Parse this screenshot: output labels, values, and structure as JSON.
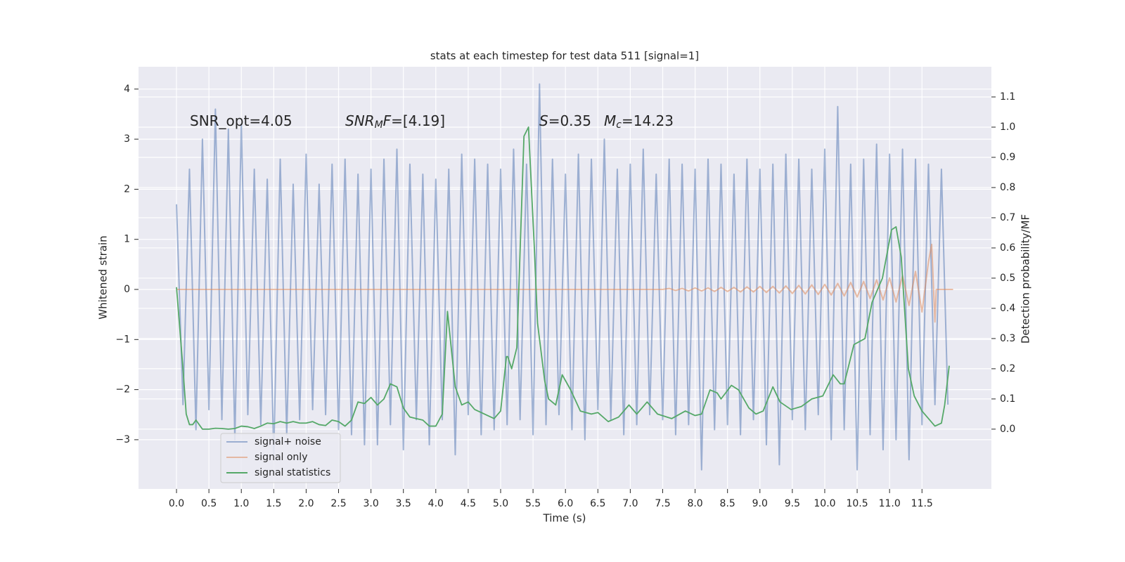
{
  "chart_data": {
    "type": "line",
    "title": "stats at each timestep for test data 511 [signal=1]",
    "xlabel": "Time (s)",
    "ylabel": "Whitened strain",
    "y2label": "Detection probability/MF",
    "annotations": [
      {
        "parts": [
          {
            "text": "SNR_opt=4.05"
          }
        ]
      },
      {
        "parts": [
          {
            "text": "SNR",
            "italic": true
          },
          {
            "text": "M",
            "italic": true,
            "sub": true
          },
          {
            "text": "F",
            "italic": true
          },
          {
            "text": "=[4.19]"
          }
        ]
      },
      {
        "parts": [
          {
            "text": "S",
            "italic": true
          },
          {
            "text": "=0.35"
          }
        ]
      },
      {
        "parts": [
          {
            "text": "M",
            "italic": true
          },
          {
            "text": "c",
            "italic": true,
            "sub": true
          },
          {
            "text": "=14.23"
          }
        ]
      }
    ],
    "xlim": [
      -0.586,
      12.571
    ],
    "ylim": [
      -3.983,
      4.446
    ],
    "y2lim": [
      -0.198,
      1.2
    ],
    "xticks": [
      {
        "value": 0,
        "label": "0.0"
      },
      0.5,
      {
        "value": 1,
        "label": "1.0"
      },
      1.5,
      {
        "value": 2,
        "label": "2.0"
      },
      2.5,
      {
        "value": 3,
        "label": "3.0"
      },
      3.5,
      {
        "value": 4,
        "label": "4.0"
      },
      4.5,
      {
        "value": 5,
        "label": "5.0"
      },
      5.5,
      {
        "value": 6,
        "label": "6.0"
      },
      6.5,
      {
        "value": 7,
        "label": "7.0"
      },
      7.5,
      {
        "value": 8,
        "label": "8.0"
      },
      8.5,
      {
        "value": 9,
        "label": "9.0"
      },
      9.5,
      {
        "value": 10,
        "label": "10.0"
      },
      10.5,
      {
        "value": 11,
        "label": "11.0"
      },
      11.5
    ],
    "yticks": [
      {
        "value": -3,
        "label": "−3"
      },
      {
        "value": -2,
        "label": "−2"
      },
      {
        "value": -1,
        "label": "−1"
      },
      0,
      1,
      2,
      3,
      4
    ],
    "y2ticks": [
      {
        "value": 0,
        "label": "0.0"
      },
      0.1,
      0.2,
      0.3,
      0.4,
      0.5,
      0.6,
      0.7,
      0.8,
      0.9,
      {
        "value": 1,
        "label": "1.0"
      },
      1.1
    ],
    "grid": true,
    "legend_loc": "lower left",
    "series": [
      {
        "name": "signal+ noise",
        "color": "#4c72b0",
        "opacity": 0.5,
        "x": [
          0,
          0.1,
          0.2,
          0.3,
          0.4,
          0.5,
          0.6,
          0.7,
          0.8,
          0.9,
          1,
          1.1,
          1.2,
          1.3,
          1.4,
          1.5,
          1.6,
          1.7,
          1.8,
          1.9,
          2,
          2.1,
          2.2,
          2.3,
          2.4,
          2.5,
          2.6,
          2.7,
          2.8,
          2.9,
          3,
          3.1,
          3.2,
          3.3,
          3.4,
          3.5,
          3.6,
          3.7,
          3.8,
          3.9,
          4,
          4.1,
          4.2,
          4.3,
          4.4,
          4.5,
          4.6,
          4.7,
          4.8,
          4.9,
          5,
          5.1,
          5.2,
          5.3,
          5.4,
          5.5,
          5.6,
          5.7,
          5.8,
          5.9,
          6,
          6.1,
          6.2,
          6.3,
          6.4,
          6.5,
          6.6,
          6.7,
          6.8,
          6.9,
          7,
          7.1,
          7.2,
          7.3,
          7.4,
          7.5,
          7.6,
          7.7,
          7.8,
          7.9,
          8,
          8.1,
          8.2,
          8.3,
          8.4,
          8.5,
          8.6,
          8.7,
          8.8,
          8.9,
          9,
          9.1,
          9.2,
          9.3,
          9.4,
          9.5,
          9.6,
          9.7,
          9.8,
          9.9,
          10,
          10.1,
          10.2,
          10.3,
          10.4,
          10.5,
          10.6,
          10.7,
          10.8,
          10.9,
          11,
          11.1,
          11.2,
          11.3,
          11.4,
          11.5,
          11.6,
          11.7,
          11.8,
          11.9
        ],
        "values": [
          1.7,
          -2.3,
          2.4,
          -2.8,
          3.0,
          -2.4,
          3.6,
          -2.6,
          3.2,
          -3.0,
          3.3,
          -2.5,
          2.4,
          -2.7,
          2.2,
          -3.3,
          2.6,
          -2.9,
          2.1,
          -2.6,
          2.7,
          -2.4,
          2.1,
          -2.5,
          2.5,
          -2.8,
          2.6,
          -2.9,
          2.3,
          -3.1,
          2.4,
          -3.1,
          2.6,
          -2.7,
          2.8,
          -3.2,
          2.5,
          -2.6,
          2.3,
          -3.1,
          2.2,
          -2.6,
          2.4,
          -3.3,
          2.7,
          -2.5,
          2.6,
          -2.9,
          2.5,
          -2.8,
          2.4,
          -2.7,
          2.8,
          -2.6,
          2.5,
          -2.9,
          4.1,
          -2.7,
          2.6,
          -2.5,
          2.3,
          -2.8,
          2.7,
          -3.0,
          2.6,
          -2.4,
          3.0,
          -2.6,
          2.4,
          -2.9,
          2.5,
          -2.7,
          2.8,
          -2.5,
          2.3,
          -2.6,
          2.6,
          -2.9,
          2.5,
          -2.7,
          2.4,
          -3.6,
          2.6,
          -2.8,
          2.5,
          -2.7,
          2.3,
          -2.9,
          2.6,
          -2.6,
          2.4,
          -3.1,
          2.5,
          -3.5,
          2.7,
          -2.6,
          2.6,
          -2.8,
          2.4,
          -2.5,
          2.8,
          -3.0,
          3.65,
          -2.8,
          2.5,
          -3.6,
          2.6,
          -2.9,
          2.9,
          -3.2,
          2.7,
          -3.0,
          2.8,
          -3.4,
          2.6,
          -2.7,
          2.5,
          -2.3,
          2.4,
          -2.3
        ]
      },
      {
        "name": "signal only",
        "color": "#dd8452",
        "opacity": 0.5,
        "x": [
          0,
          7.5,
          7.6,
          7.7,
          7.8,
          7.9,
          8,
          8.1,
          8.2,
          8.3,
          8.4,
          8.5,
          8.6,
          8.7,
          8.8,
          8.9,
          9,
          9.1,
          9.2,
          9.3,
          9.4,
          9.5,
          9.6,
          9.7,
          9.8,
          9.9,
          10,
          10.1,
          10.2,
          10.3,
          10.4,
          10.5,
          10.6,
          10.7,
          10.8,
          10.9,
          11,
          11.1,
          11.2,
          11.3,
          11.4,
          11.5,
          11.6,
          11.65,
          11.7,
          11.72,
          11.98
        ],
        "values": [
          0,
          0,
          0.02,
          -0.02,
          0.02,
          -0.03,
          0.03,
          -0.03,
          0.03,
          -0.04,
          0.04,
          -0.04,
          0.04,
          -0.05,
          0.05,
          -0.05,
          0.06,
          -0.06,
          0.06,
          -0.07,
          0.07,
          -0.08,
          0.08,
          -0.09,
          0.09,
          -0.1,
          0.1,
          -0.11,
          0.12,
          -0.13,
          0.14,
          -0.15,
          0.16,
          -0.18,
          0.19,
          -0.21,
          0.23,
          -0.25,
          0.28,
          -0.32,
          0.36,
          -0.45,
          0.55,
          0.9,
          -0.65,
          0,
          0
        ]
      },
      {
        "name": "signal statistics",
        "color": "#55a868",
        "opacity": 1,
        "axis": "y2",
        "x": [
          0,
          0.1,
          0.15,
          0.2,
          0.25,
          0.3,
          0.4,
          0.5,
          0.6,
          0.7,
          0.8,
          0.9,
          1,
          1.1,
          1.2,
          1.3,
          1.4,
          1.5,
          1.6,
          1.7,
          1.8,
          1.9,
          2,
          2.1,
          2.2,
          2.3,
          2.4,
          2.5,
          2.6,
          2.7,
          2.8,
          2.9,
          3,
          3.1,
          3.2,
          3.3,
          3.4,
          3.5,
          3.6,
          3.7,
          3.8,
          3.9,
          4,
          4.1,
          4.18,
          4.3,
          4.4,
          4.5,
          4.6,
          4.7,
          4.8,
          4.9,
          5,
          5.09,
          5.11,
          5.17,
          5.25,
          5.36,
          5.43,
          5.52,
          5.57,
          5.68,
          5.74,
          5.85,
          5.95,
          6.08,
          6.23,
          6.4,
          6.5,
          6.66,
          6.82,
          6.98,
          7.1,
          7.26,
          7.42,
          7.64,
          7.85,
          8,
          8.1,
          8.23,
          8.34,
          8.4,
          8.56,
          8.67,
          8.83,
          8.94,
          9.05,
          9.2,
          9.31,
          9.48,
          9.64,
          9.8,
          9.97,
          10.13,
          10.24,
          10.3,
          10.45,
          10.62,
          10.73,
          10.89,
          11.03,
          11.1,
          11.18,
          11.29,
          11.38,
          11.5,
          11.7,
          11.8,
          11.85,
          11.92
        ],
        "values": [
          0.47,
          0.2,
          0.05,
          0.015,
          0.015,
          0.03,
          0,
          0,
          0.003,
          0.002,
          0,
          0.002,
          0.01,
          0.008,
          0.002,
          0.01,
          0.02,
          0.018,
          0.025,
          0.02,
          0.025,
          0.02,
          0.02,
          0.025,
          0.015,
          0.012,
          0.03,
          0.025,
          0.01,
          0.03,
          0.09,
          0.085,
          0.105,
          0.08,
          0.1,
          0.15,
          0.14,
          0.07,
          0.04,
          0.035,
          0.03,
          0.01,
          0.01,
          0.05,
          0.39,
          0.14,
          0.08,
          0.09,
          0.065,
          0.055,
          0.045,
          0.035,
          0.06,
          0.24,
          0.24,
          0.2,
          0.27,
          0.97,
          1.0,
          0.6,
          0.35,
          0.16,
          0.1,
          0.08,
          0.18,
          0.13,
          0.06,
          0.05,
          0.055,
          0.025,
          0.04,
          0.08,
          0.05,
          0.09,
          0.05,
          0.035,
          0.06,
          0.045,
          0.05,
          0.13,
          0.12,
          0.1,
          0.145,
          0.13,
          0.07,
          0.05,
          0.06,
          0.14,
          0.09,
          0.065,
          0.075,
          0.1,
          0.11,
          0.18,
          0.15,
          0.15,
          0.28,
          0.3,
          0.42,
          0.5,
          0.66,
          0.67,
          0.57,
          0.2,
          0.11,
          0.06,
          0.01,
          0.02,
          0.08,
          0.21
        ]
      }
    ]
  }
}
